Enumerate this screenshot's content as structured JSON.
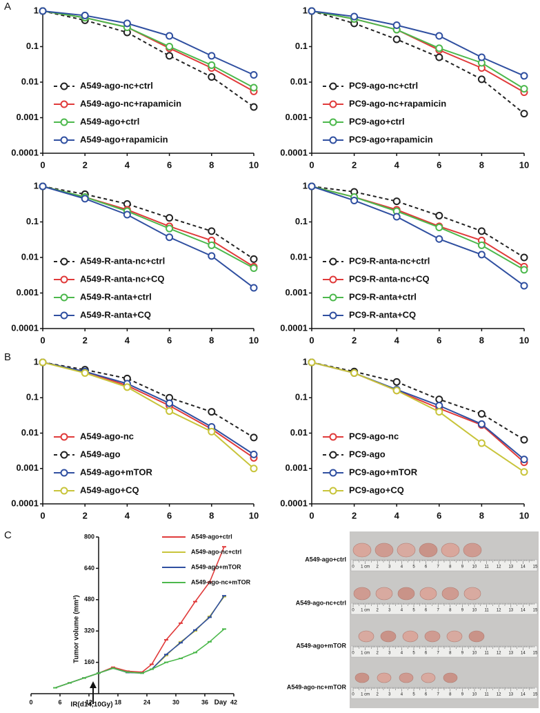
{
  "panel_labels": [
    "A",
    "B",
    "C"
  ],
  "chart_data": [
    {
      "type": "line",
      "log_y": true,
      "xlim": [
        0,
        10
      ],
      "ylim": [
        0.0001,
        1
      ],
      "xticks": [
        0,
        2,
        4,
        6,
        8,
        10
      ],
      "yticks": [
        0.0001,
        0.001,
        0.01,
        0.1,
        1
      ],
      "legend": "lower left",
      "x": [
        0,
        2,
        4,
        6,
        8,
        10
      ],
      "series": [
        {
          "name": "A549-ago-nc+ctrl",
          "color": "#222222",
          "dashed": true,
          "values": [
            1,
            0.55,
            0.25,
            0.055,
            0.014,
            0.002
          ]
        },
        {
          "name": "A549-ago-nc+rapamicin",
          "color": "#e03a3a",
          "dashed": false,
          "values": [
            1,
            0.65,
            0.35,
            0.09,
            0.025,
            0.0055
          ]
        },
        {
          "name": "A549-ago+ctrl",
          "color": "#4cb84c",
          "dashed": false,
          "values": [
            1,
            0.65,
            0.35,
            0.1,
            0.03,
            0.007
          ]
        },
        {
          "name": "A549-ago+rapamicin",
          "color": "#2f4fa0",
          "dashed": false,
          "values": [
            1,
            0.75,
            0.45,
            0.2,
            0.055,
            0.016
          ]
        }
      ]
    },
    {
      "type": "line",
      "log_y": true,
      "xlim": [
        0,
        10
      ],
      "ylim": [
        0.0001,
        1
      ],
      "xticks": [
        0,
        2,
        4,
        6,
        8,
        10
      ],
      "yticks": [
        0.0001,
        0.001,
        0.01,
        0.1,
        1
      ],
      "legend": "lower left",
      "x": [
        0,
        2,
        4,
        6,
        8,
        10
      ],
      "series": [
        {
          "name": "PC9-ago-nc+ctrl",
          "color": "#222222",
          "dashed": true,
          "values": [
            1,
            0.45,
            0.16,
            0.05,
            0.012,
            0.0013
          ]
        },
        {
          "name": "PC9-ago-nc+rapamicin",
          "color": "#e03a3a",
          "dashed": false,
          "values": [
            1,
            0.6,
            0.3,
            0.08,
            0.025,
            0.0052
          ]
        },
        {
          "name": "PC9-ago+ctrl",
          "color": "#4cb84c",
          "dashed": false,
          "values": [
            1,
            0.6,
            0.3,
            0.09,
            0.035,
            0.0065
          ]
        },
        {
          "name": "PC9-ago+rapamicin",
          "color": "#2f4fa0",
          "dashed": false,
          "values": [
            1,
            0.7,
            0.4,
            0.2,
            0.05,
            0.015
          ]
        }
      ]
    },
    {
      "type": "line",
      "log_y": true,
      "xlim": [
        0,
        10
      ],
      "ylim": [
        0.0001,
        1
      ],
      "xticks": [
        0,
        2,
        4,
        6,
        8,
        10
      ],
      "yticks": [
        0.0001,
        0.001,
        0.01,
        0.1,
        1
      ],
      "legend": "lower left",
      "x": [
        0,
        2,
        4,
        6,
        8,
        10
      ],
      "series": [
        {
          "name": "A549-R-anta-nc+ctrl",
          "color": "#222222",
          "dashed": true,
          "values": [
            1,
            0.6,
            0.32,
            0.13,
            0.055,
            0.009
          ]
        },
        {
          "name": "A549-R-anta-nc+CQ",
          "color": "#e03a3a",
          "dashed": false,
          "values": [
            1,
            0.5,
            0.22,
            0.075,
            0.03,
            0.0055
          ]
        },
        {
          "name": "A549-R-anta+ctrl",
          "color": "#4cb84c",
          "dashed": false,
          "values": [
            1,
            0.5,
            0.2,
            0.065,
            0.022,
            0.005
          ]
        },
        {
          "name": "A549-R-anta+CQ",
          "color": "#2f4fa0",
          "dashed": false,
          "values": [
            1,
            0.45,
            0.16,
            0.037,
            0.011,
            0.0014
          ]
        }
      ]
    },
    {
      "type": "line",
      "log_y": true,
      "xlim": [
        0,
        10
      ],
      "ylim": [
        0.0001,
        1
      ],
      "xticks": [
        0,
        2,
        4,
        6,
        8,
        10
      ],
      "yticks": [
        0.0001,
        0.001,
        0.01,
        0.1,
        1
      ],
      "legend": "lower left",
      "x": [
        0,
        2,
        4,
        6,
        8,
        10
      ],
      "series": [
        {
          "name": "PC9-R-anta-nc+ctrl",
          "color": "#222222",
          "dashed": true,
          "values": [
            1,
            0.7,
            0.38,
            0.15,
            0.055,
            0.01
          ]
        },
        {
          "name": "PC9-R-anta-nc+CQ",
          "color": "#e03a3a",
          "dashed": false,
          "values": [
            1,
            0.5,
            0.22,
            0.075,
            0.03,
            0.0055
          ]
        },
        {
          "name": "PC9-R-anta+ctrl",
          "color": "#4cb84c",
          "dashed": false,
          "values": [
            1,
            0.5,
            0.2,
            0.07,
            0.022,
            0.0045
          ]
        },
        {
          "name": "PC9-R-anta+CQ",
          "color": "#2f4fa0",
          "dashed": false,
          "values": [
            1,
            0.4,
            0.14,
            0.033,
            0.012,
            0.0016
          ]
        }
      ]
    },
    {
      "type": "line",
      "log_y": true,
      "xlim": [
        0,
        10
      ],
      "ylim": [
        0.0001,
        1
      ],
      "xticks": [
        0,
        2,
        4,
        6,
        8,
        10
      ],
      "yticks": [
        0.0001,
        0.001,
        0.01,
        0.1,
        1
      ],
      "legend": "lower left",
      "x": [
        0,
        2,
        4,
        6,
        8,
        10
      ],
      "series": [
        {
          "name": "A549-ago-nc",
          "color": "#e03a3a",
          "dashed": false,
          "values": [
            1,
            0.55,
            0.22,
            0.06,
            0.013,
            0.002
          ]
        },
        {
          "name": "A549-ago",
          "color": "#222222",
          "dashed": true,
          "values": [
            1,
            0.62,
            0.35,
            0.1,
            0.04,
            0.0075
          ]
        },
        {
          "name": "A549-ago+mTOR",
          "color": "#2f4fa0",
          "dashed": false,
          "values": [
            1,
            0.55,
            0.25,
            0.07,
            0.015,
            0.0025
          ]
        },
        {
          "name": "A549-ago+CQ",
          "color": "#c8c43a",
          "dashed": false,
          "values": [
            1,
            0.5,
            0.2,
            0.042,
            0.011,
            0.001
          ]
        }
      ]
    },
    {
      "type": "line",
      "log_y": true,
      "xlim": [
        0,
        10
      ],
      "ylim": [
        0.0001,
        1
      ],
      "xticks": [
        0,
        2,
        4,
        6,
        8,
        10
      ],
      "yticks": [
        0.0001,
        0.001,
        0.01,
        0.1,
        1
      ],
      "legend": "lower left",
      "x": [
        0,
        2,
        4,
        6,
        8,
        10
      ],
      "series": [
        {
          "name": "PC9-ago-nc",
          "color": "#e03a3a",
          "dashed": false,
          "values": [
            1,
            0.5,
            0.16,
            0.05,
            0.017,
            0.0015
          ]
        },
        {
          "name": "PC9-ago",
          "color": "#222222",
          "dashed": true,
          "values": [
            1,
            0.55,
            0.28,
            0.09,
            0.035,
            0.0065
          ]
        },
        {
          "name": "PC9-ago+mTOR",
          "color": "#2f4fa0",
          "dashed": false,
          "values": [
            1,
            0.5,
            0.17,
            0.06,
            0.018,
            0.0018
          ]
        },
        {
          "name": "PC9-ago+CQ",
          "color": "#c8c43a",
          "dashed": false,
          "values": [
            1,
            0.5,
            0.16,
            0.04,
            0.0052,
            0.0008
          ]
        }
      ]
    },
    {
      "type": "line",
      "log_y": false,
      "xlabel": "Day",
      "ylabel": "Tumor volume (mm³)",
      "annotation": "IR(d14,10Gy)",
      "annotation_x": 14,
      "xlim": [
        0,
        42
      ],
      "ylim": [
        0,
        800
      ],
      "xticks": [
        0,
        6,
        12,
        18,
        24,
        30,
        36,
        42
      ],
      "yticks": [
        160,
        320,
        480,
        640,
        800
      ],
      "legend": "upper right",
      "x": [
        5,
        8,
        11,
        14,
        17,
        20,
        23,
        25,
        28,
        31,
        34,
        37,
        40
      ],
      "series": [
        {
          "name": "A549-ago+ctrl",
          "color": "#e03a3a",
          "dashed": false,
          "values": [
            30,
            55,
            80,
            105,
            135,
            115,
            110,
            150,
            275,
            360,
            470,
            570,
            750
          ]
        },
        {
          "name": "A549-ago-nc+ctrl",
          "color": "#c8c43a",
          "dashed": false,
          "values": [
            30,
            55,
            80,
            105,
            130,
            108,
            105,
            125,
            195,
            265,
            320,
            395,
            495
          ]
        },
        {
          "name": "A549-ago+mTOR",
          "color": "#2f4fa0",
          "dashed": false,
          "values": [
            30,
            55,
            80,
            105,
            130,
            108,
            105,
            125,
            200,
            260,
            325,
            390,
            500
          ]
        },
        {
          "name": "A549-ago-nc+mTOR",
          "color": "#4cb84c",
          "dashed": false,
          "values": [
            30,
            55,
            80,
            105,
            130,
            110,
            105,
            125,
            160,
            180,
            210,
            265,
            330
          ]
        }
      ]
    }
  ],
  "photo": {
    "row_labels": [
      "A549-ago+ctrl",
      "A549-ago-nc+ctrl",
      "A549-ago+mTOR",
      "A549-ago-nc+mTOR"
    ],
    "ruler_labels": [
      "0",
      "1 cm",
      "2",
      "3",
      "4",
      "5",
      "6",
      "7",
      "8",
      "9",
      "10",
      "11",
      "12",
      "13",
      "14",
      "15"
    ]
  }
}
